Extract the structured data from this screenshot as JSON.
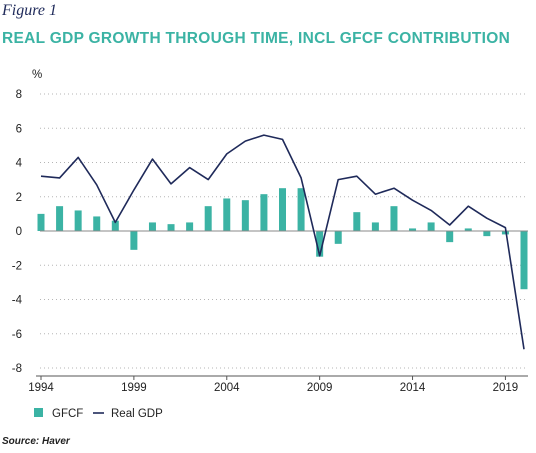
{
  "figure_label": "Figure 1",
  "title": "REAL GDP GROWTH THROUGH TIME, INCL GFCF CONTRIBUTION",
  "source": "Source: Haver",
  "colors": {
    "gfcf": "#3bb3a4",
    "real_gdp": "#1f2a5a",
    "grid": "#b5b5b5",
    "title": "#3bb3a4"
  },
  "chart_data": {
    "type": "bar",
    "title": "REAL GDP GROWTH THROUGH TIME, INCL GFCF CONTRIBUTION",
    "ylabel": "%",
    "xlabel": "",
    "ylim": [
      -8,
      8
    ],
    "yticks": [
      8,
      6,
      4,
      2,
      0,
      -2,
      -4,
      -6,
      -8
    ],
    "xlim": [
      1994,
      2020
    ],
    "xticks": [
      1994,
      1999,
      2004,
      2009,
      2014,
      2019
    ],
    "grid": true,
    "legend_position": "bottom-left",
    "x": [
      1994,
      1995,
      1996,
      1997,
      1998,
      1999,
      2000,
      2001,
      2002,
      2003,
      2004,
      2005,
      2006,
      2007,
      2008,
      2009,
      2010,
      2011,
      2012,
      2013,
      2014,
      2015,
      2016,
      2017,
      2018,
      2019,
      2020
    ],
    "series": [
      {
        "name": "GFCF",
        "type": "bar",
        "values": [
          1.0,
          1.45,
          1.2,
          0.85,
          0.6,
          -1.1,
          0.5,
          0.4,
          0.5,
          1.45,
          1.9,
          1.8,
          2.15,
          2.5,
          2.5,
          -1.5,
          -0.75,
          1.1,
          0.5,
          1.45,
          0.15,
          0.5,
          -0.65,
          0.15,
          -0.3,
          -0.2,
          -3.4
        ]
      },
      {
        "name": "Real GDP",
        "type": "line",
        "values": [
          3.2,
          3.1,
          4.3,
          2.7,
          0.5,
          2.4,
          4.2,
          2.75,
          3.7,
          3.0,
          4.5,
          5.25,
          5.6,
          5.35,
          3.1,
          -1.45,
          3.0,
          3.2,
          2.15,
          2.5,
          1.8,
          1.2,
          0.35,
          1.45,
          0.75,
          0.2,
          -6.9
        ]
      }
    ]
  }
}
